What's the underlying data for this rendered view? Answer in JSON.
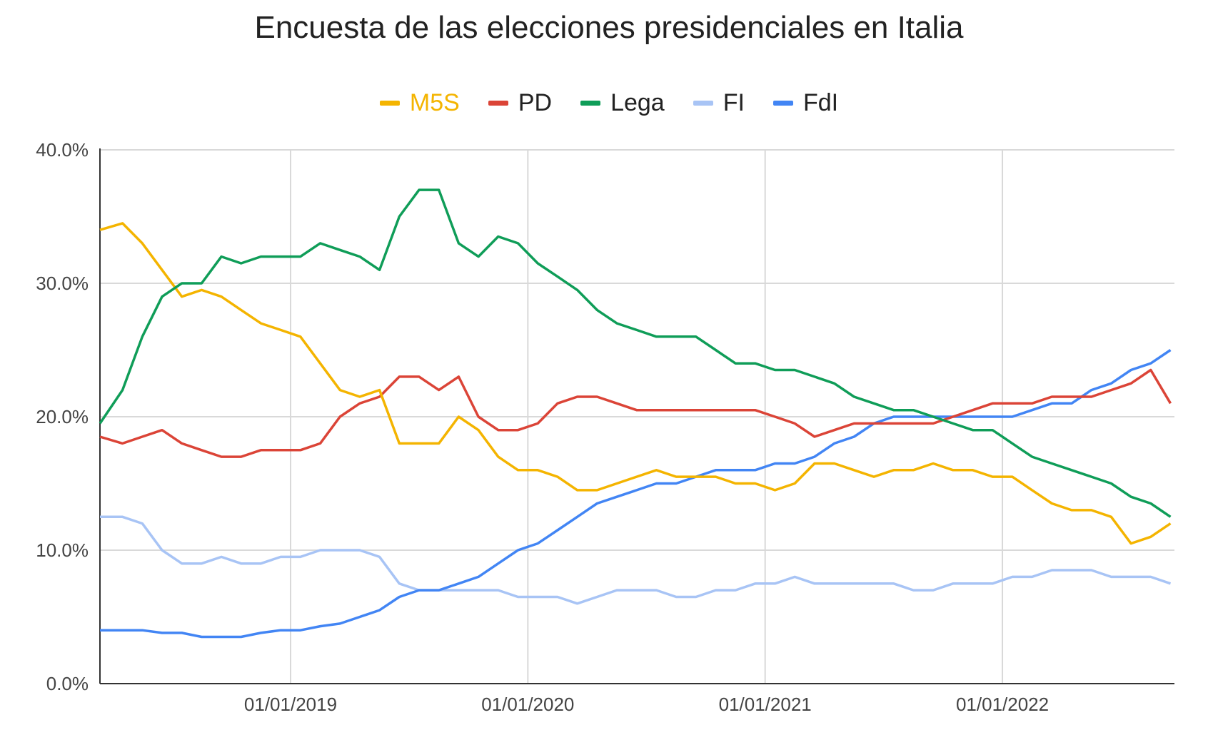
{
  "chart_data": {
    "type": "line",
    "title": "Encuesta de las elecciones presidenciales en Italia",
    "xlabel": "",
    "ylabel": "",
    "ylim": [
      0,
      40
    ],
    "y_ticks": [
      "0.0%",
      "10.0%",
      "20.0%",
      "30.0%",
      "40.0%"
    ],
    "x_ticks": [
      "01/01/2019",
      "01/01/2020",
      "01/01/2021",
      "01/01/2022"
    ],
    "x_range": [
      "2018-03",
      "2022-09"
    ],
    "grid": true,
    "legend_placement": "top",
    "x": [
      "2018-03",
      "2018-04",
      "2018-05",
      "2018-06",
      "2018-07",
      "2018-08",
      "2018-09",
      "2018-10",
      "2018-11",
      "2018-12",
      "2019-01",
      "2019-02",
      "2019-03",
      "2019-04",
      "2019-05",
      "2019-06",
      "2019-07",
      "2019-08",
      "2019-09",
      "2019-10",
      "2019-11",
      "2019-12",
      "2020-01",
      "2020-02",
      "2020-03",
      "2020-04",
      "2020-05",
      "2020-06",
      "2020-07",
      "2020-08",
      "2020-09",
      "2020-10",
      "2020-11",
      "2020-12",
      "2021-01",
      "2021-02",
      "2021-03",
      "2021-04",
      "2021-05",
      "2021-06",
      "2021-07",
      "2021-08",
      "2021-09",
      "2021-10",
      "2021-11",
      "2021-12",
      "2022-01",
      "2022-02",
      "2022-03",
      "2022-04",
      "2022-05",
      "2022-06",
      "2022-07",
      "2022-08",
      "2022-09"
    ],
    "series": [
      {
        "name": "M5S",
        "color": "#f4b400",
        "values": [
          34,
          34.5,
          33,
          31,
          29,
          29.5,
          29,
          28,
          27,
          26.5,
          26,
          24,
          22,
          21.5,
          22,
          18,
          18,
          18,
          20,
          19,
          17,
          16,
          16,
          15.5,
          14.5,
          14.5,
          15,
          15.5,
          16,
          15.5,
          15.5,
          15.5,
          15,
          15,
          14.5,
          15,
          16.5,
          16.5,
          16,
          15.5,
          16,
          16,
          16.5,
          16,
          16,
          15.5,
          15.5,
          14.5,
          13.5,
          13,
          13,
          12.5,
          10.5,
          11,
          12
        ]
      },
      {
        "name": "PD",
        "color": "#db4437",
        "values": [
          18.5,
          18,
          18.5,
          19,
          18,
          17.5,
          17,
          17,
          17.5,
          17.5,
          17.5,
          18,
          20,
          21,
          21.5,
          23,
          23,
          22,
          23,
          20,
          19,
          19,
          19.5,
          21,
          21.5,
          21.5,
          21,
          20.5,
          20.5,
          20.5,
          20.5,
          20.5,
          20.5,
          20.5,
          20,
          19.5,
          18.5,
          19,
          19.5,
          19.5,
          19.5,
          19.5,
          19.5,
          20,
          20.5,
          21,
          21,
          21,
          21.5,
          21.5,
          21.5,
          22,
          22.5,
          23.5,
          21
        ]
      },
      {
        "name": "Lega",
        "color": "#0f9d58",
        "values": [
          19.5,
          22,
          26,
          29,
          30,
          30,
          32,
          31.5,
          32,
          32,
          32,
          33,
          32.5,
          32,
          31,
          35,
          37,
          37,
          33,
          32,
          33.5,
          33,
          31.5,
          30.5,
          29.5,
          28,
          27,
          26.5,
          26,
          26,
          26,
          25,
          24,
          24,
          23.5,
          23.5,
          23,
          22.5,
          21.5,
          21,
          20.5,
          20.5,
          20,
          19.5,
          19,
          19,
          18,
          17,
          16.5,
          16,
          15.5,
          15,
          14,
          13.5,
          12.5
        ]
      },
      {
        "name": "FI",
        "color": "#a8c4f5",
        "values": [
          12.5,
          12.5,
          12,
          10,
          9,
          9,
          9.5,
          9,
          9,
          9.5,
          9.5,
          10,
          10,
          10,
          9.5,
          7.5,
          7,
          7,
          7,
          7,
          7,
          6.5,
          6.5,
          6.5,
          6,
          6.5,
          7,
          7,
          7,
          6.5,
          6.5,
          7,
          7,
          7.5,
          7.5,
          8,
          7.5,
          7.5,
          7.5,
          7.5,
          7.5,
          7,
          7,
          7.5,
          7.5,
          7.5,
          8,
          8,
          8.5,
          8.5,
          8.5,
          8,
          8,
          8,
          7.5
        ]
      },
      {
        "name": "FdI",
        "color": "#4285f4",
        "values": [
          4,
          4,
          4,
          3.8,
          3.8,
          3.5,
          3.5,
          3.5,
          3.8,
          4,
          4,
          4.3,
          4.5,
          5,
          5.5,
          6.5,
          7,
          7,
          7.5,
          8,
          9,
          10,
          10.5,
          11.5,
          12.5,
          13.5,
          14,
          14.5,
          15,
          15,
          15.5,
          16,
          16,
          16,
          16.5,
          16.5,
          17,
          18,
          18.5,
          19.5,
          20,
          20,
          20,
          20,
          20,
          20,
          20,
          20.5,
          21,
          21,
          22,
          22.5,
          23.5,
          24,
          25
        ]
      }
    ]
  }
}
